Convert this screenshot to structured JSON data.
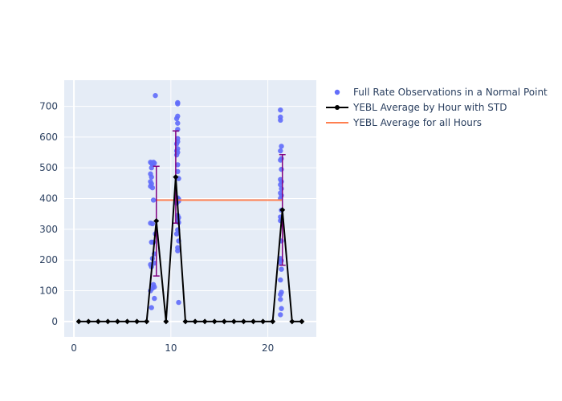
{
  "chart_data": {
    "type": "scatter",
    "xlim": [
      -1,
      25
    ],
    "ylim": [
      -50,
      785
    ],
    "x_ticks": [
      0,
      10,
      20
    ],
    "y_ticks": [
      0,
      100,
      200,
      300,
      400,
      500,
      600,
      700
    ],
    "grid": true,
    "legend_position": "top-right",
    "colors": {
      "plot_bg": "#e5ecf6",
      "grid": "#ffffff",
      "scatter": "#636efa",
      "average_line": "#000000",
      "error_bar": "#800080",
      "overall_line": "#ff7f50",
      "text": "#2a3f5f"
    },
    "series": [
      {
        "name": "Full Rate Observations in a Normal Point",
        "type": "scatter",
        "points": [
          [
            7.9,
            518
          ],
          [
            8.0,
            515
          ],
          [
            8.1,
            512
          ],
          [
            8.2,
            518
          ],
          [
            8.3,
            515
          ],
          [
            8.0,
            500
          ],
          [
            7.9,
            480
          ],
          [
            8.0,
            470
          ],
          [
            7.9,
            455
          ],
          [
            8.0,
            448
          ],
          [
            7.9,
            440
          ],
          [
            8.1,
            435
          ],
          [
            8.2,
            395
          ],
          [
            7.9,
            320
          ],
          [
            8.1,
            318
          ],
          [
            8.4,
            285
          ],
          [
            8.0,
            258
          ],
          [
            8.2,
            258
          ],
          [
            8.3,
            220
          ],
          [
            8.1,
            205
          ],
          [
            7.9,
            185
          ],
          [
            8.0,
            178
          ],
          [
            8.3,
            190
          ],
          [
            8.2,
            120
          ],
          [
            8.3,
            112
          ],
          [
            8.1,
            108
          ],
          [
            7.9,
            100
          ],
          [
            8.3,
            75
          ],
          [
            8.0,
            45
          ],
          [
            8.4,
            735
          ],
          [
            10.7,
            712
          ],
          [
            10.7,
            708
          ],
          [
            10.7,
            668
          ],
          [
            10.6,
            660
          ],
          [
            10.7,
            645
          ],
          [
            10.7,
            625
          ],
          [
            10.7,
            595
          ],
          [
            10.7,
            585
          ],
          [
            10.6,
            578
          ],
          [
            10.7,
            562
          ],
          [
            10.6,
            555
          ],
          [
            10.7,
            550
          ],
          [
            10.6,
            542
          ],
          [
            10.7,
            510
          ],
          [
            10.7,
            488
          ],
          [
            10.8,
            465
          ],
          [
            10.7,
            402
          ],
          [
            10.8,
            398
          ],
          [
            10.8,
            392
          ],
          [
            10.6,
            385
          ],
          [
            10.7,
            345
          ],
          [
            10.8,
            338
          ],
          [
            10.7,
            330
          ],
          [
            10.8,
            322
          ],
          [
            10.7,
            298
          ],
          [
            10.6,
            285
          ],
          [
            10.8,
            262
          ],
          [
            10.7,
            240
          ],
          [
            10.7,
            230
          ],
          [
            10.8,
            62
          ],
          [
            21.3,
            688
          ],
          [
            21.3,
            665
          ],
          [
            21.3,
            655
          ],
          [
            21.4,
            570
          ],
          [
            21.3,
            555
          ],
          [
            21.4,
            530
          ],
          [
            21.3,
            525
          ],
          [
            21.4,
            495
          ],
          [
            21.3,
            462
          ],
          [
            21.4,
            455
          ],
          [
            21.3,
            445
          ],
          [
            21.4,
            432
          ],
          [
            21.3,
            418
          ],
          [
            21.4,
            410
          ],
          [
            21.3,
            400
          ],
          [
            21.4,
            362
          ],
          [
            21.3,
            340
          ],
          [
            21.4,
            332
          ],
          [
            21.3,
            328
          ],
          [
            21.4,
            262
          ],
          [
            21.3,
            205
          ],
          [
            21.4,
            198
          ],
          [
            21.3,
            192
          ],
          [
            21.4,
            170
          ],
          [
            21.3,
            135
          ],
          [
            21.4,
            95
          ],
          [
            21.3,
            88
          ],
          [
            21.3,
            72
          ],
          [
            21.4,
            42
          ],
          [
            21.3,
            22
          ]
        ]
      },
      {
        "name": "YEBL Average by Hour with STD",
        "type": "line",
        "points": [
          [
            0.5,
            0
          ],
          [
            1.5,
            0
          ],
          [
            2.5,
            0
          ],
          [
            3.5,
            0
          ],
          [
            4.5,
            0
          ],
          [
            5.5,
            0
          ],
          [
            6.5,
            0
          ],
          [
            7.5,
            0
          ],
          [
            8.5,
            327
          ],
          [
            9.5,
            0
          ],
          [
            10.5,
            470
          ],
          [
            11.5,
            0
          ],
          [
            12.5,
            0
          ],
          [
            13.5,
            0
          ],
          [
            14.5,
            0
          ],
          [
            15.5,
            0
          ],
          [
            16.5,
            0
          ],
          [
            17.5,
            0
          ],
          [
            18.5,
            0
          ],
          [
            19.5,
            0
          ],
          [
            20.5,
            0
          ],
          [
            21.5,
            363
          ],
          [
            22.5,
            0
          ],
          [
            23.5,
            0
          ]
        ],
        "error_bars": [
          {
            "x": 8.5,
            "low": 148,
            "high": 505
          },
          {
            "x": 10.5,
            "low": 320,
            "high": 620
          },
          {
            "x": 21.5,
            "low": 183,
            "high": 543
          }
        ]
      },
      {
        "name": "YEBL Average for all Hours",
        "type": "line",
        "points": [
          [
            8.5,
            395
          ],
          [
            21.5,
            395
          ]
        ]
      }
    ]
  }
}
